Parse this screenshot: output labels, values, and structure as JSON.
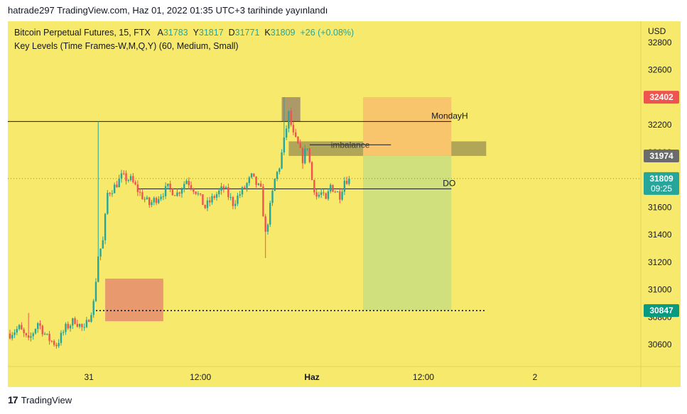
{
  "header": {
    "published": "hatrade297 TradingView.com, Haz 01, 2022 01:35 UTC+3 tarihinde yayınlandı"
  },
  "legend": {
    "symbol": "Bitcoin Perpetual Futures, 15, FTX",
    "o_label": "A",
    "o": "31783",
    "h_label": "Y",
    "h": "31817",
    "l_label": "D",
    "l": "31771",
    "c_label": "K",
    "c": "31809",
    "change": "+26 (+0.08%)",
    "indicator": "Key Levels (Time Frames-W,M,Q,Y) (60, Medium, Small)"
  },
  "footer": {
    "logo_glyph": "17",
    "brand": "TradingView"
  },
  "colors": {
    "background": "#f7e96b",
    "up": "#26a69a",
    "down": "#ef5350",
    "red_tag": "#ef5350",
    "gray_tag": "#6b6b6b",
    "teal_tag": "#26a69a",
    "dark_green_tag": "#089981"
  },
  "chart_data": {
    "type": "candlestick",
    "currency": "USD",
    "ylim": [
      30550,
      32860
    ],
    "yticks": [
      30600,
      30800,
      31000,
      31200,
      31400,
      31600,
      31800,
      32000,
      32200,
      32400,
      32600,
      32800
    ],
    "xticks": [
      {
        "label": "31",
        "bar": 34
      },
      {
        "label": "12:00",
        "bar": 82
      },
      {
        "label": "Haz",
        "bar": 130,
        "bold": true
      },
      {
        "label": "12:00",
        "bar": 178
      },
      {
        "label": "2",
        "bar": 226
      }
    ],
    "price_tags": [
      {
        "value": 32402,
        "text": "32402",
        "style": "red"
      },
      {
        "value": 31974,
        "text": "31974",
        "style": "gray"
      },
      {
        "value": 31809,
        "text": "31809",
        "subtext": "09:25",
        "style": "teal"
      },
      {
        "value": 30847,
        "text": "30847",
        "style": "green"
      }
    ],
    "levels": [
      {
        "name": "MondayH",
        "value": 32225,
        "bar_start": -1,
        "bar_end": 190
      },
      {
        "name": "DO",
        "value": 31734,
        "bar_start": 55,
        "bar_end": 190
      },
      {
        "name": "imbalance",
        "value": 32055,
        "bar_start": 129,
        "bar_end": 164
      }
    ],
    "dotted_level": {
      "value": 30847,
      "bar_start": 37,
      "bar_end": 205
    },
    "zones": [
      {
        "kind": "supply",
        "bar_start": 117,
        "bar_end": 125,
        "top": 32402,
        "bottom": 32225
      },
      {
        "kind": "imbalance",
        "bar_start": 120,
        "bar_end": 205,
        "top": 32080,
        "bottom": 31974
      },
      {
        "kind": "demand",
        "bar_start": 41,
        "bar_end": 66,
        "top": 31080,
        "bottom": 30770
      },
      {
        "kind": "stop",
        "bar_start": 152,
        "bar_end": 190,
        "top": 32402,
        "bottom": 31974
      },
      {
        "kind": "target",
        "bar_start": 152,
        "bar_end": 190,
        "top": 31974,
        "bottom": 30847
      }
    ],
    "waypoints": [
      [
        0,
        30680
      ],
      [
        4,
        30720
      ],
      [
        8,
        30620
      ],
      [
        12,
        30760
      ],
      [
        16,
        30650
      ],
      [
        20,
        30600
      ],
      [
        24,
        30720
      ],
      [
        28,
        30780
      ],
      [
        32,
        30700
      ],
      [
        34,
        30800
      ],
      [
        36,
        30900
      ],
      [
        38,
        31250
      ],
      [
        40,
        31350
      ],
      [
        42,
        31700
      ],
      [
        45,
        31750
      ],
      [
        48,
        31820
      ],
      [
        52,
        31800
      ],
      [
        56,
        31700
      ],
      [
        60,
        31620
      ],
      [
        64,
        31680
      ],
      [
        68,
        31740
      ],
      [
        72,
        31700
      ],
      [
        76,
        31800
      ],
      [
        80,
        31720
      ],
      [
        84,
        31600
      ],
      [
        88,
        31680
      ],
      [
        92,
        31740
      ],
      [
        96,
        31630
      ],
      [
        100,
        31720
      ],
      [
        104,
        31820
      ],
      [
        108,
        31720
      ],
      [
        110,
        31400
      ],
      [
        112,
        31600
      ],
      [
        114,
        31800
      ],
      [
        116,
        31900
      ],
      [
        118,
        32080
      ],
      [
        120,
        32280
      ],
      [
        122,
        32120
      ],
      [
        124,
        32050
      ],
      [
        126,
        31950
      ],
      [
        128,
        32050
      ],
      [
        130,
        31800
      ],
      [
        132,
        31680
      ],
      [
        134,
        31700
      ],
      [
        136,
        31640
      ],
      [
        138,
        31760
      ],
      [
        140,
        31720
      ],
      [
        142,
        31690
      ],
      [
        144,
        31800
      ],
      [
        146,
        31809
      ]
    ],
    "spikes": [
      {
        "bar": 8,
        "value": 30830
      },
      {
        "bar": 38,
        "value": 32225
      },
      {
        "bar": 110,
        "value": 31230
      },
      {
        "bar": 118,
        "value": 32402
      },
      {
        "bar": 126,
        "value": 31880
      }
    ],
    "last_bar": 146,
    "last_close": 31809
  }
}
